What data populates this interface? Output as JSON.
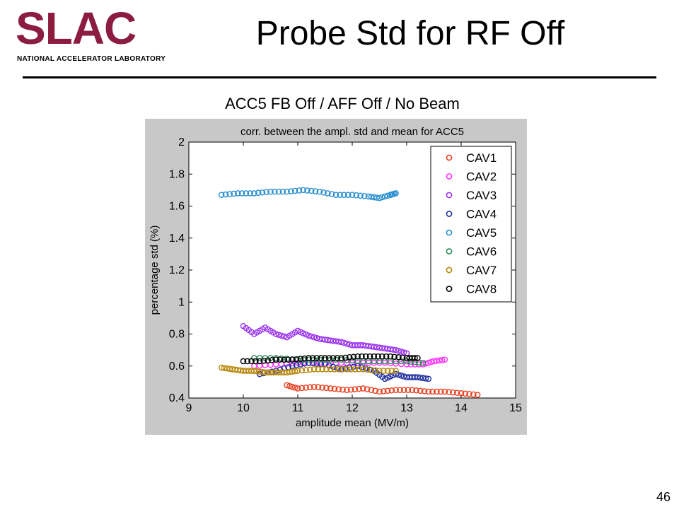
{
  "slide": {
    "title": "Probe Std for RF Off",
    "subtitle": "ACC5 FB Off / AFF Off / No Beam",
    "page_number": "46"
  },
  "logo": {
    "wordmark": "SLAC",
    "tagline": "NATIONAL ACCELERATOR LABORATORY",
    "color": "#8c1d40"
  },
  "colors": {
    "figure_bg": "#c8c8c8",
    "axes_bg": "#ffffff"
  },
  "chart_data": {
    "type": "scatter",
    "title": "corr. between the ampl. std and mean for ACC5",
    "xlabel": "amplitude mean (MV/m)",
    "ylabel": "percentage std (%)",
    "xlim": [
      9,
      15
    ],
    "ylim": [
      0.4,
      2
    ],
    "xticks": [
      "9",
      "10",
      "11",
      "12",
      "13",
      "14",
      "15"
    ],
    "yticks": [
      "0.4",
      "0.6",
      "0.8",
      "1",
      "1.2",
      "1.4",
      "1.6",
      "1.8",
      "2"
    ],
    "legend_position": "top-right",
    "marker": "open circle",
    "series": [
      {
        "name": "CAV1",
        "color": "#e8411f",
        "points": [
          [
            10.8,
            0.48
          ],
          [
            11.0,
            0.46
          ],
          [
            11.3,
            0.47
          ],
          [
            11.6,
            0.46
          ],
          [
            11.9,
            0.45
          ],
          [
            12.2,
            0.46
          ],
          [
            12.5,
            0.44
          ],
          [
            12.8,
            0.45
          ],
          [
            13.1,
            0.45
          ],
          [
            13.4,
            0.44
          ],
          [
            13.7,
            0.44
          ],
          [
            14.0,
            0.43
          ],
          [
            14.3,
            0.42
          ]
        ]
      },
      {
        "name": "CAV2",
        "color": "#ff33ff",
        "points": [
          [
            10.2,
            0.6
          ],
          [
            10.6,
            0.61
          ],
          [
            11.0,
            0.62
          ],
          [
            11.4,
            0.62
          ],
          [
            11.8,
            0.62
          ],
          [
            12.2,
            0.62
          ],
          [
            12.6,
            0.62
          ],
          [
            13.0,
            0.61
          ],
          [
            13.3,
            0.61
          ],
          [
            13.5,
            0.63
          ],
          [
            13.7,
            0.64
          ]
        ]
      },
      {
        "name": "CAV3",
        "color": "#9933ee",
        "points": [
          [
            10.0,
            0.85
          ],
          [
            10.2,
            0.8
          ],
          [
            10.4,
            0.84
          ],
          [
            10.6,
            0.8
          ],
          [
            10.8,
            0.78
          ],
          [
            11.0,
            0.82
          ],
          [
            11.2,
            0.79
          ],
          [
            11.4,
            0.77
          ],
          [
            11.6,
            0.76
          ],
          [
            11.8,
            0.75
          ],
          [
            12.0,
            0.73
          ],
          [
            12.2,
            0.73
          ],
          [
            12.4,
            0.72
          ],
          [
            12.6,
            0.71
          ],
          [
            12.8,
            0.7
          ],
          [
            13.0,
            0.68
          ]
        ]
      },
      {
        "name": "CAV4",
        "color": "#1f2f9f",
        "points": [
          [
            10.3,
            0.55
          ],
          [
            10.6,
            0.57
          ],
          [
            10.9,
            0.6
          ],
          [
            11.2,
            0.62
          ],
          [
            11.5,
            0.61
          ],
          [
            11.8,
            0.58
          ],
          [
            12.1,
            0.6
          ],
          [
            12.4,
            0.57
          ],
          [
            12.6,
            0.52
          ],
          [
            12.8,
            0.55
          ],
          [
            13.0,
            0.53
          ],
          [
            13.2,
            0.53
          ],
          [
            13.4,
            0.52
          ]
        ]
      },
      {
        "name": "CAV5",
        "color": "#2a8fd0",
        "points": [
          [
            9.6,
            1.67
          ],
          [
            9.9,
            1.68
          ],
          [
            10.2,
            1.68
          ],
          [
            10.5,
            1.69
          ],
          [
            10.8,
            1.69
          ],
          [
            11.1,
            1.7
          ],
          [
            11.4,
            1.69
          ],
          [
            11.7,
            1.67
          ],
          [
            12.0,
            1.67
          ],
          [
            12.3,
            1.66
          ],
          [
            12.5,
            1.65
          ],
          [
            12.7,
            1.67
          ],
          [
            12.8,
            1.68
          ]
        ]
      },
      {
        "name": "CAV6",
        "color": "#2e8b57",
        "points": [
          [
            10.2,
            0.65
          ],
          [
            10.6,
            0.65
          ],
          [
            11.0,
            0.64
          ],
          [
            11.4,
            0.64
          ],
          [
            11.8,
            0.64
          ],
          [
            12.2,
            0.63
          ],
          [
            12.6,
            0.63
          ],
          [
            13.0,
            0.63
          ],
          [
            13.3,
            0.62
          ]
        ]
      },
      {
        "name": "CAV7",
        "color": "#b8860b",
        "points": [
          [
            9.6,
            0.59
          ],
          [
            9.8,
            0.58
          ],
          [
            10.0,
            0.57
          ],
          [
            10.2,
            0.57
          ],
          [
            10.4,
            0.56
          ],
          [
            10.6,
            0.56
          ],
          [
            10.8,
            0.56
          ],
          [
            11.0,
            0.57
          ],
          [
            11.3,
            0.58
          ],
          [
            11.6,
            0.58
          ],
          [
            11.9,
            0.58
          ],
          [
            12.2,
            0.58
          ],
          [
            12.5,
            0.57
          ],
          [
            12.8,
            0.57
          ]
        ]
      },
      {
        "name": "CAV8",
        "color": "#000000",
        "points": [
          [
            10.0,
            0.63
          ],
          [
            10.3,
            0.63
          ],
          [
            10.6,
            0.64
          ],
          [
            10.9,
            0.64
          ],
          [
            11.2,
            0.65
          ],
          [
            11.5,
            0.65
          ],
          [
            11.8,
            0.65
          ],
          [
            12.1,
            0.66
          ],
          [
            12.4,
            0.66
          ],
          [
            12.7,
            0.66
          ],
          [
            13.0,
            0.65
          ],
          [
            13.2,
            0.65
          ]
        ]
      }
    ]
  }
}
